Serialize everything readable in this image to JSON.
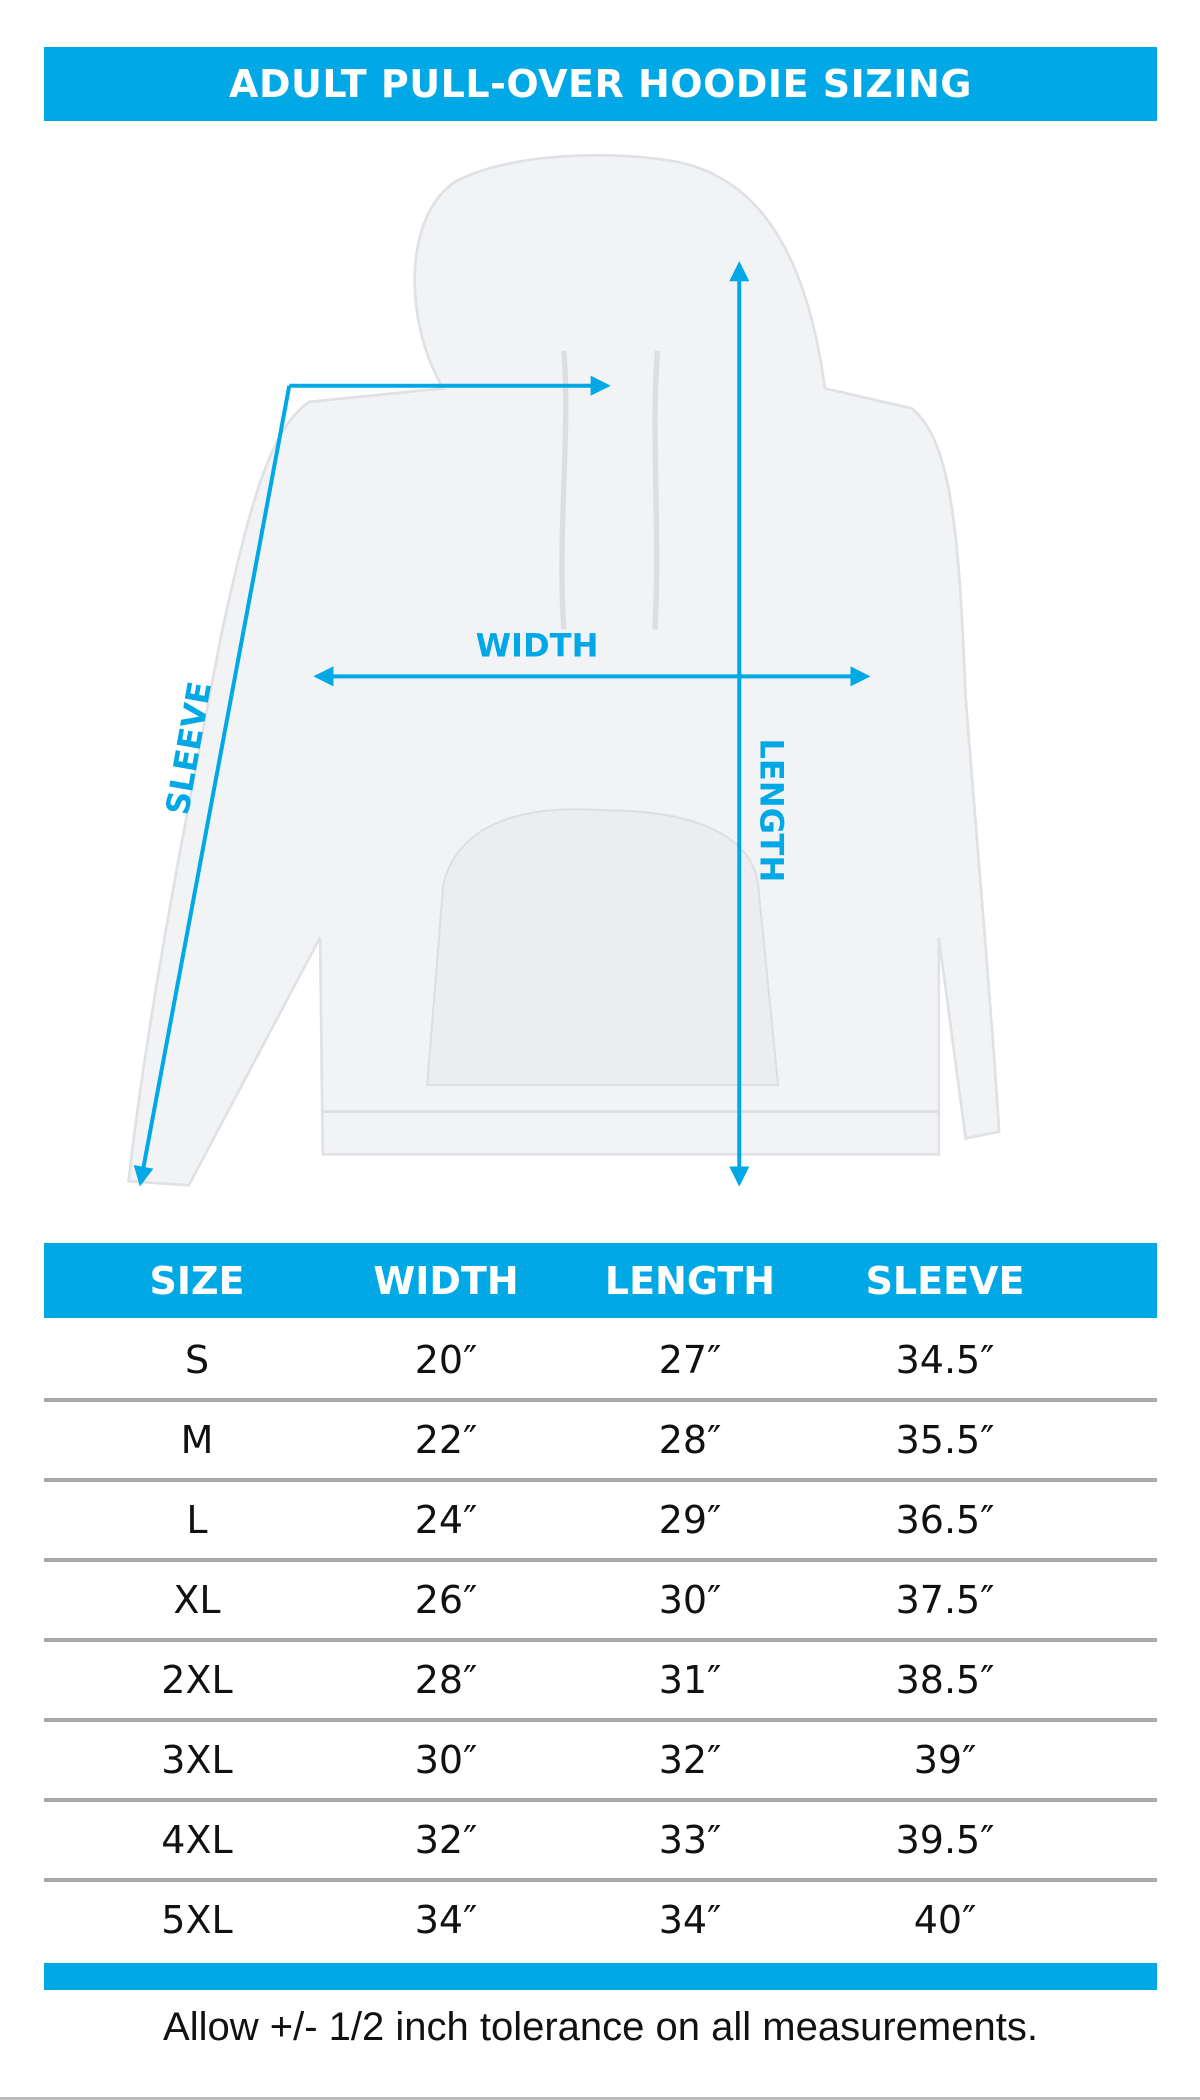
{
  "title": "ADULT PULL-OVER HOODIE SIZING",
  "diagram": {
    "labels": {
      "width": "WIDTH",
      "length": "LENGTH",
      "sleeve": "SLEEVE"
    },
    "accent_color": "#00a9e6",
    "garment_color": "#f2f3f5"
  },
  "table": {
    "headers": [
      "SIZE",
      "WIDTH",
      "LENGTH",
      "SLEEVE"
    ],
    "rows": [
      [
        "S",
        "20″",
        "27″",
        "34.5″"
      ],
      [
        "M",
        "22″",
        "28″",
        "35.5″"
      ],
      [
        "L",
        "24″",
        "29″",
        "36.5″"
      ],
      [
        "XL",
        "26″",
        "30″",
        "37.5″"
      ],
      [
        "2XL",
        "28″",
        "31″",
        "38.5″"
      ],
      [
        "3XL",
        "30″",
        "32″",
        "39″"
      ],
      [
        "4XL",
        "32″",
        "33″",
        "39.5″"
      ],
      [
        "5XL",
        "34″",
        "34″",
        "40″"
      ]
    ]
  },
  "note": "Allow +/- 1/2 inch tolerance on all measurements."
}
